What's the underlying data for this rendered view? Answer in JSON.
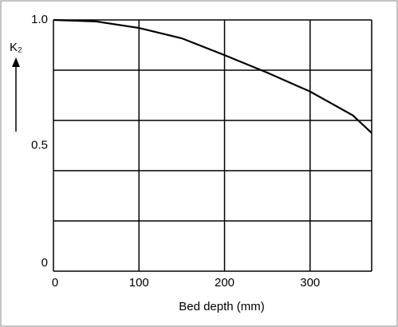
{
  "chart_data": {
    "type": "line",
    "x_label": "Bed depth (mm)",
    "y_label": "K₂",
    "x": [
      0,
      50,
      100,
      150,
      200,
      250,
      300,
      350,
      372
    ],
    "series": [
      {
        "color": "#000000",
        "values": [
          1.0,
          0.994,
          0.968,
          0.927,
          0.86,
          0.79,
          0.715,
          0.62,
          0.55
        ]
      }
    ],
    "xlim": [
      0,
      372
    ],
    "ylim": [
      0,
      1
    ],
    "xticks": [
      0,
      100,
      200,
      300
    ],
    "yticks": [
      0,
      0.5,
      {
        "value": 1,
        "label": "1.0"
      }
    ],
    "ygrid": [
      0,
      0.2,
      0.4,
      0.6,
      0.8,
      1
    ],
    "grid": true
  }
}
